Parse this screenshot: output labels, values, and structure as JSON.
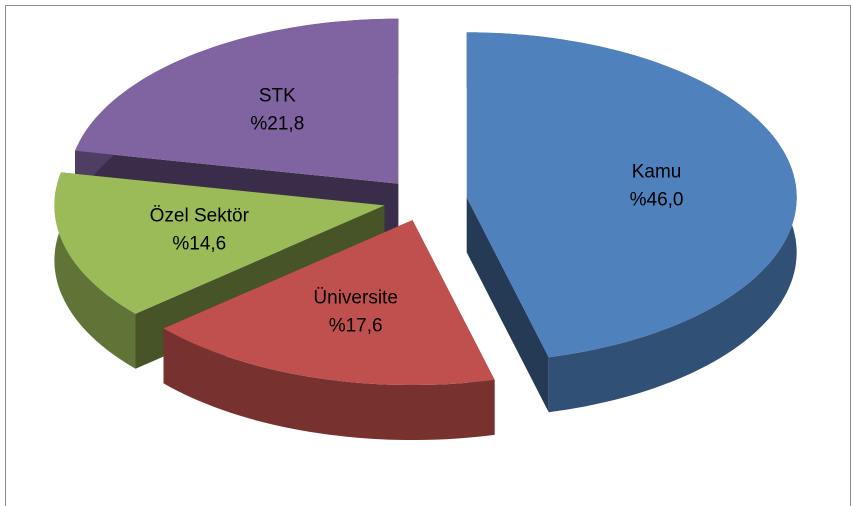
{
  "chart_data": {
    "type": "pie3d",
    "categories": [
      "Kamu",
      "Üniversite",
      "Özel Sektör",
      "STK"
    ],
    "values": [
      46.0,
      17.6,
      14.6,
      21.8
    ],
    "value_labels": [
      "%46,0",
      "%17,6",
      "%14,6",
      "%21,8"
    ],
    "colors": [
      "#4f81bd",
      "#c0504d",
      "#9bbb59",
      "#8064a2"
    ]
  }
}
